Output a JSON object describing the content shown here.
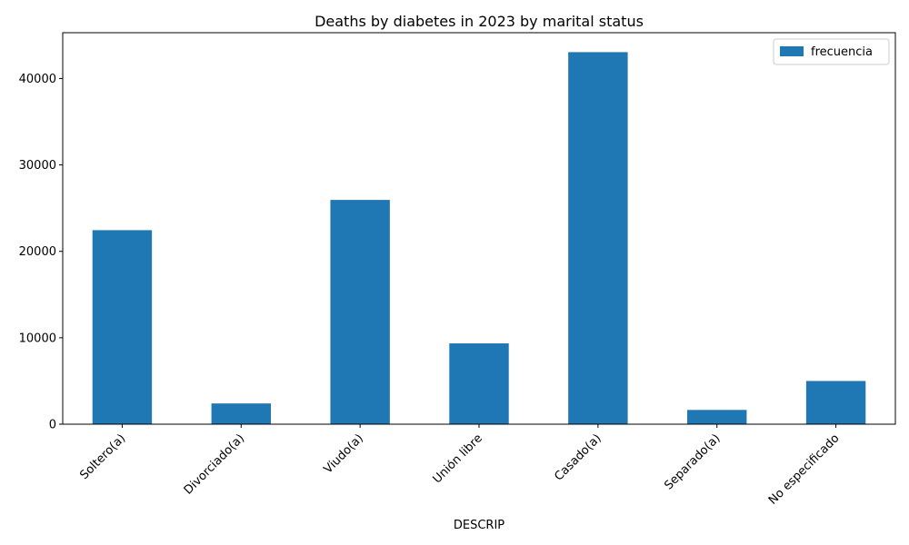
{
  "chart_data": {
    "type": "bar",
    "title": "Deaths by diabetes in 2023 by marital status",
    "xlabel": "DESCRIP",
    "ylabel": "",
    "categories": [
      "Soltero(a)",
      "Divorciado(a)",
      "Viudo(a)",
      "Unión libre",
      "Casado(a)",
      "Separado(a)",
      "No especificado"
    ],
    "series": [
      {
        "name": "frecuencia",
        "values": [
          22450,
          2400,
          25950,
          9350,
          43050,
          1650,
          5000
        ],
        "color": "#1f77b4"
      }
    ],
    "ylim": [
      0,
      45300
    ],
    "yticks": [
      0,
      10000,
      20000,
      30000,
      40000
    ],
    "ytick_labels": [
      "0",
      "10000",
      "20000",
      "30000",
      "40000"
    ],
    "grid": false,
    "legend": {
      "placement": "top-right"
    }
  }
}
